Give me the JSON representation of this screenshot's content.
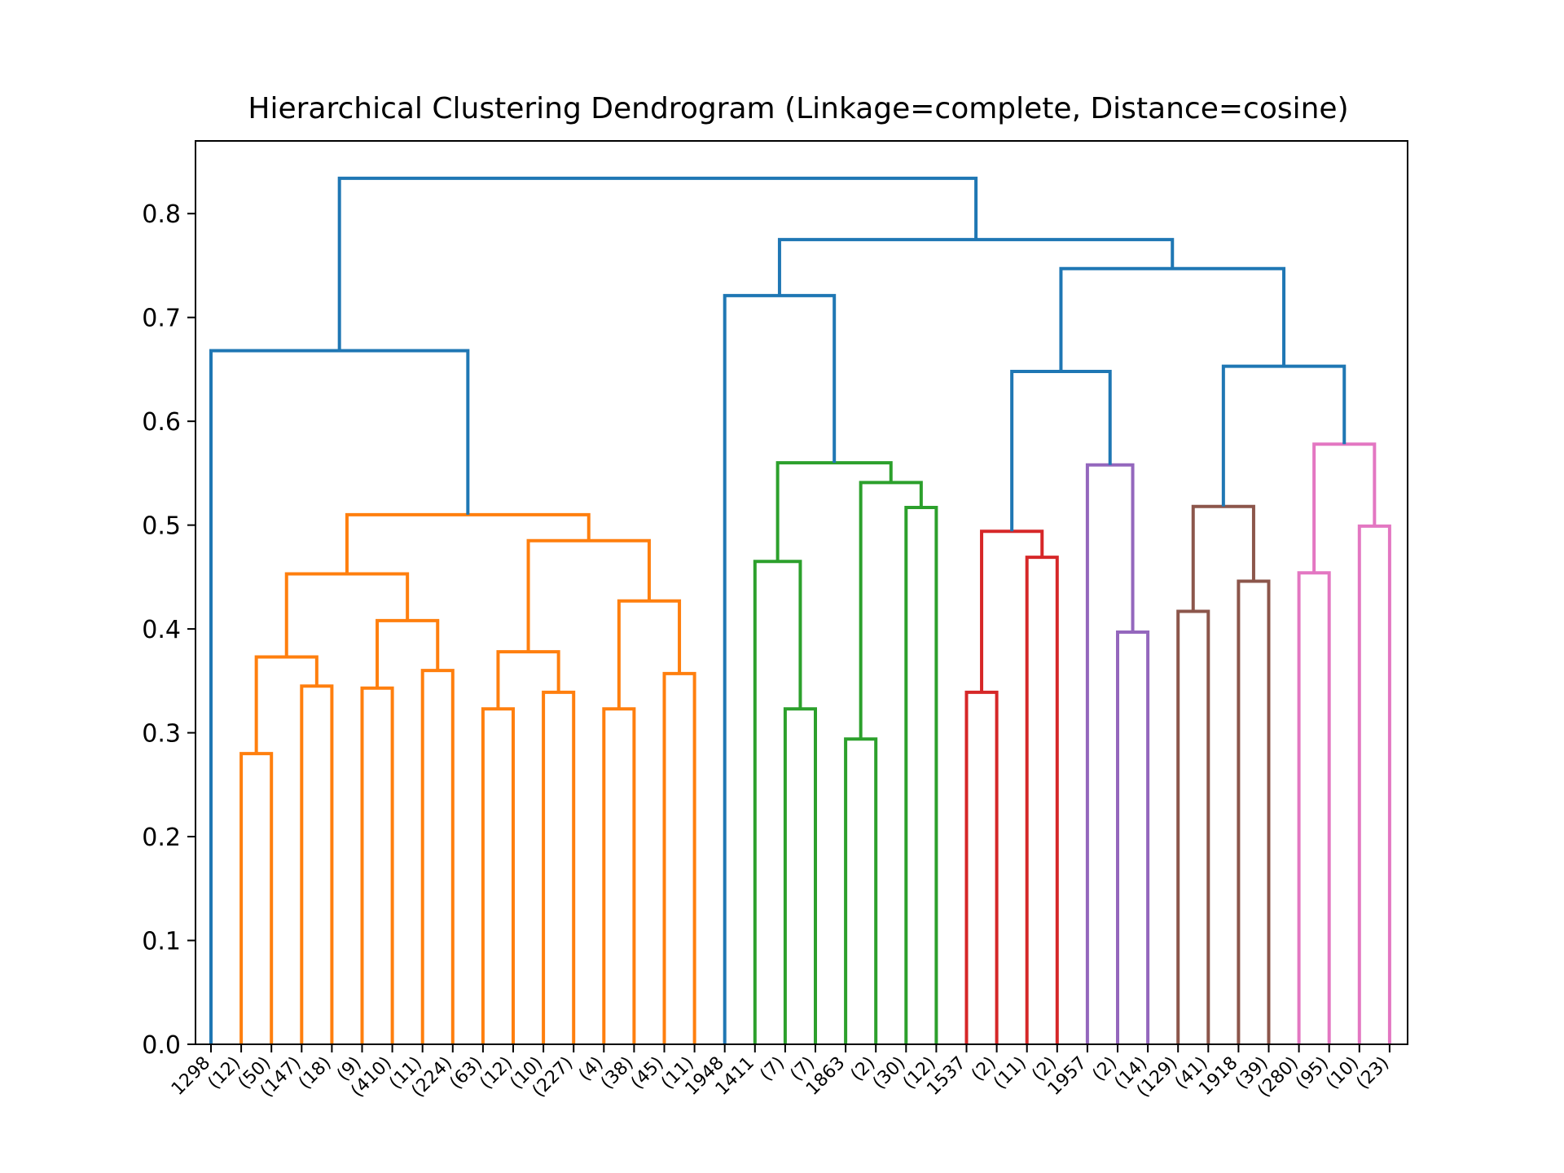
{
  "chart_data": {
    "type": "dendrogram",
    "title": "Hierarchical Clustering Dendrogram (Linkage=complete, Distance=cosine)",
    "xlabel": "",
    "ylabel": "",
    "ylim": [
      0,
      0.87
    ],
    "yticks": [
      "0.0",
      "0.1",
      "0.2",
      "0.3",
      "0.4",
      "0.5",
      "0.6",
      "0.7",
      "0.8"
    ],
    "grid": false,
    "leaf_labels": [
      "1298",
      "(12)",
      "(50)",
      "(147)",
      "(18)",
      "(9)",
      "(410)",
      "(11)",
      "(224)",
      "(63)",
      "(12)",
      "(10)",
      "(227)",
      "(4)",
      "(38)",
      "(45)",
      "(11)",
      "1948",
      "1411",
      "(7)",
      "(7)",
      "1863",
      "(2)",
      "(30)",
      "(12)",
      "1537",
      "(2)",
      "(11)",
      "(2)",
      "1957",
      "(2)",
      "(14)",
      "(129)",
      "(41)",
      "1918",
      "(39)",
      "(280)",
      "(95)",
      "(10)",
      "(23)"
    ],
    "colors": {
      "above_threshold": "#1f77b4",
      "cluster_1": "#ff7f0e",
      "cluster_2": "#2ca02c",
      "cluster_3": "#d62728",
      "cluster_4": "#9467bd",
      "cluster_5": "#8c564b",
      "cluster_6": "#e377c2"
    },
    "merges": [
      {
        "left": 1,
        "right": 2,
        "height": 0.28,
        "color": "cluster_1"
      },
      {
        "left": 3,
        "right": 4,
        "height": 0.345,
        "color": "cluster_1"
      },
      {
        "left": "m0",
        "right": "m1",
        "height": 0.373,
        "color": "cluster_1"
      },
      {
        "left": 5,
        "right": 6,
        "height": 0.343,
        "color": "cluster_1"
      },
      {
        "left": 7,
        "right": 8,
        "height": 0.36,
        "color": "cluster_1"
      },
      {
        "left": "m3",
        "right": "m4",
        "height": 0.408,
        "color": "cluster_1"
      },
      {
        "left": "m2",
        "right": "m5",
        "height": 0.453,
        "color": "cluster_1"
      },
      {
        "left": 9,
        "right": 10,
        "height": 0.323,
        "color": "cluster_1"
      },
      {
        "left": 11,
        "right": 12,
        "height": 0.339,
        "color": "cluster_1"
      },
      {
        "left": "m7",
        "right": "m8",
        "height": 0.378,
        "color": "cluster_1"
      },
      {
        "left": 13,
        "right": 14,
        "height": 0.323,
        "color": "cluster_1"
      },
      {
        "left": 15,
        "right": 16,
        "height": 0.357,
        "color": "cluster_1"
      },
      {
        "left": "m10",
        "right": "m11",
        "height": 0.427,
        "color": "cluster_1"
      },
      {
        "left": "m9",
        "right": "m12",
        "height": 0.485,
        "color": "cluster_1"
      },
      {
        "left": "m6",
        "right": "m13",
        "height": 0.51,
        "color": "cluster_1"
      },
      {
        "left": 0,
        "right": "m14",
        "height": 0.668,
        "color": "above_threshold"
      },
      {
        "left": 19,
        "right": 20,
        "height": 0.323,
        "color": "cluster_2"
      },
      {
        "left": 18,
        "right": "m16",
        "height": 0.465,
        "color": "cluster_2"
      },
      {
        "left": 21,
        "right": 22,
        "height": 0.294,
        "color": "cluster_2"
      },
      {
        "left": 23,
        "right": 24,
        "height": 0.517,
        "color": "cluster_2"
      },
      {
        "left": "m18",
        "right": "m19",
        "height": 0.541,
        "color": "cluster_2"
      },
      {
        "left": "m17",
        "right": "m20",
        "height": 0.56,
        "color": "cluster_2"
      },
      {
        "left": 17,
        "right": "m21",
        "height": 0.721,
        "color": "above_threshold"
      },
      {
        "left": 25,
        "right": 26,
        "height": 0.339,
        "color": "cluster_3"
      },
      {
        "left": 27,
        "right": 28,
        "height": 0.469,
        "color": "cluster_3"
      },
      {
        "left": "m23",
        "right": "m24",
        "height": 0.494,
        "color": "cluster_3"
      },
      {
        "left": 30,
        "right": 31,
        "height": 0.397,
        "color": "cluster_4"
      },
      {
        "left": 29,
        "right": "m26",
        "height": 0.558,
        "color": "cluster_4"
      },
      {
        "left": "m25",
        "right": "m27",
        "height": 0.648,
        "color": "above_threshold"
      },
      {
        "left": 32,
        "right": 33,
        "height": 0.417,
        "color": "cluster_5"
      },
      {
        "left": 34,
        "right": 35,
        "height": 0.446,
        "color": "cluster_5"
      },
      {
        "left": "m29",
        "right": "m30",
        "height": 0.518,
        "color": "cluster_5"
      },
      {
        "left": 36,
        "right": 37,
        "height": 0.454,
        "color": "cluster_6"
      },
      {
        "left": 38,
        "right": 39,
        "height": 0.499,
        "color": "cluster_6"
      },
      {
        "left": "m32",
        "right": "m33",
        "height": 0.578,
        "color": "cluster_6"
      },
      {
        "left": "m31",
        "right": "m34",
        "height": 0.653,
        "color": "above_threshold"
      },
      {
        "left": "m28",
        "right": "m35",
        "height": 0.747,
        "color": "above_threshold"
      },
      {
        "left": "m22",
        "right": "m36",
        "height": 0.775,
        "color": "above_threshold"
      },
      {
        "left": "m15",
        "right": "m37",
        "height": 0.834,
        "color": "above_threshold"
      }
    ]
  }
}
